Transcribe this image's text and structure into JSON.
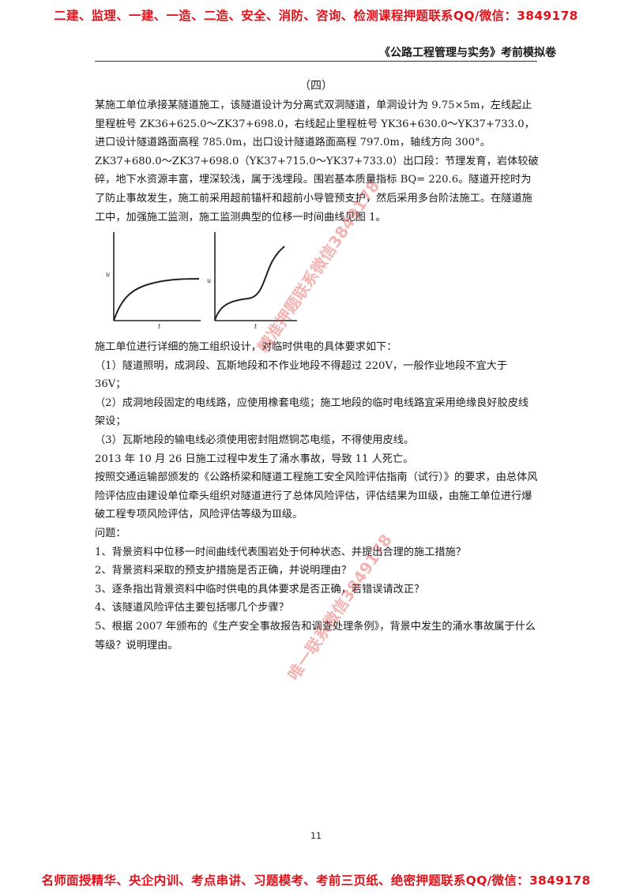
{
  "banner_top": "二建、监理、一建、一造、二造、安全、消防、咨询、检测课程押题联系QQ/微信：3849178",
  "banner_bottom": "名师面授精华、央企内训、考点串讲、习题模考、考前三页纸、绝密押题联系QQ/微信：3849178",
  "header_title": "《公路工程管理与实务》考前模拟卷",
  "section_number": "（四）",
  "intro_paragraph": "某施工单位承接某隧道施工，该隧道设计为分离式双洞隧道，单洞设计为 9.75×5m，左线起止里程桩号 ZK36+625.0～ZK37+698.0，右线起止里程桩号 YK36+630.0～YK37+733.0，进口设计隧道路面高程 785.0m，出口设计隧道路面高程 797.0m，轴线方向 300°。ZK37+680.0～ZK37+698.0（YK37+715.0～YK37+733.0）出口段：节理发育，岩体较破碎，地下水资源丰富，埋深较浅，属于浅埋段。围岩基本质量指标 BQ= 220.6。隧道开挖时为了防止事故发生，施工前采用超前锚杆和超前小导管预支护，然后采用多台阶法施工。在隧道施工中，加强施工监测，施工监测典型的位移一时间曲线见图 1。",
  "figure": {
    "left_y_label": "u",
    "left_x_label": "t",
    "right_y_label": "u",
    "right_x_label": "t"
  },
  "power_intro": "施工单位进行详细的施工组织设计，对临时供电的具体要求如下：",
  "power_item_1": "（1）隧道照明，成洞段、瓦斯地段和不作业地段不得超过 220V，一般作业地段不宜大于 36V；",
  "power_item_2": "（2）成洞地段固定的电线路，应使用橡套电缆；施工地段的临时电线路宜采用绝缘良好胶皮线架设；",
  "power_item_3": "（3）瓦斯地段的输电线必须使用密封阻燃铜芯电缆，不得使用皮线。",
  "accident_line": "2013 年 10 月 26 日施工过程中发生了涌水事故，导致 11 人死亡。",
  "risk_paragraph": "按照交通运输部颁发的《公路桥梁和隧道工程施工安全风险评估指南（试行）》的要求，由总体风险评估应由建设单位牵头组织对隧道进行了总体风险评估，评估结果为Ⅲ级，由施工单位进行爆破工程专项风险评估，风险评估等级为Ⅲ级。",
  "questions_label": "问题：",
  "questions": [
    "1、背景资料中位移一时间曲线代表围岩处于何种状态、并提出合理的施工措施？",
    "2、背景资料采取的预支护措施是否正确，并说明理由？",
    "3、逐条指出背景资料中临时供电的具体要求是否正确，若错误请改正？",
    "4、该隧道风险评估主要包括哪几个步骤？",
    "5、根据 2007 年颁布的《生产安全事故报告和调查处理条例》，背景中发生的涌水事故属于什么等级？说明理由。"
  ],
  "watermark_1": "精准押题联系微信3849178",
  "watermark_2": "唯一联系微信3849178",
  "page_number": "11"
}
